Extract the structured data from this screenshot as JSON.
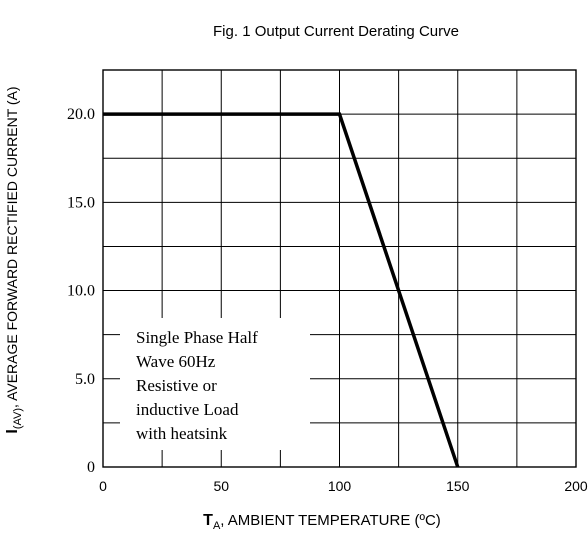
{
  "chart_data": {
    "type": "line",
    "title": "Fig. 1  Output Current Derating Curve",
    "xlabel": {
      "symbol": "T",
      "subscript": "A",
      "text": ", AMBIENT TEMPERATURE (ºC)"
    },
    "ylabel": {
      "symbol": "I",
      "subscript": "(AV)",
      "text": ", AVERAGE FORWARD RECTIFIED CURRENT (A)"
    },
    "xlim": [
      0,
      200
    ],
    "ylim": [
      0,
      22.5
    ],
    "x_ticks": [
      {
        "value": 0,
        "label": "0"
      },
      {
        "value": 50,
        "label": "50"
      },
      {
        "value": 100,
        "label": "100"
      },
      {
        "value": 150,
        "label": "150"
      },
      {
        "value": 200,
        "label": "200"
      }
    ],
    "y_ticks": [
      {
        "value": 0,
        "label": "0"
      },
      {
        "value": 5,
        "label": "5.0"
      },
      {
        "value": 10,
        "label": "10.0"
      },
      {
        "value": 15,
        "label": "15.0"
      },
      {
        "value": 20,
        "label": "20.0"
      }
    ],
    "grid": true,
    "grid_x_step": 25,
    "grid_y_step": 2.5,
    "series": [
      {
        "x": [
          0,
          100,
          150
        ],
        "y": [
          20,
          20,
          0
        ]
      }
    ],
    "annotation": {
      "lines": [
        "Single Phase Half",
        "Wave 60Hz",
        "Resistive or",
        "inductive Load",
        "with heatsink"
      ]
    }
  }
}
